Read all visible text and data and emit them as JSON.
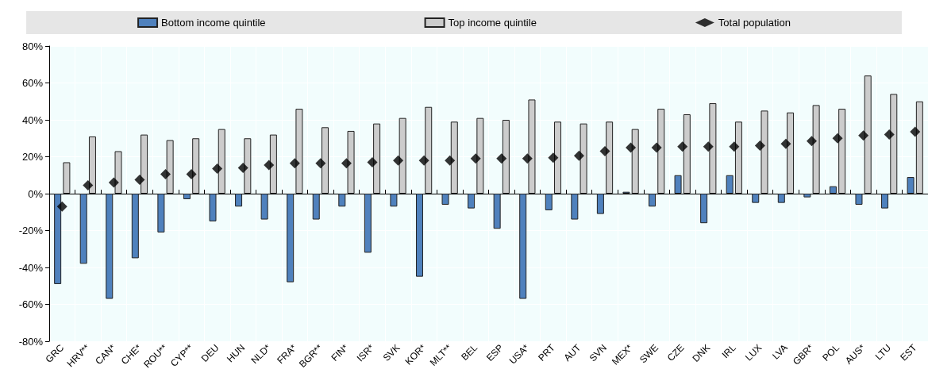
{
  "chart_data": {
    "type": "bar",
    "categories": [
      "GRC",
      "HRV**",
      "CAN*",
      "CHE*",
      "ROU**",
      "CYP**",
      "DEU",
      "HUN",
      "NLD*",
      "FRA*",
      "BGR**",
      "FIN*",
      "ISR*",
      "SVK",
      "KOR*",
      "MLT**",
      "BEL",
      "ESP",
      "USA*",
      "PRT",
      "AUT",
      "SVN",
      "MEX*",
      "SWE",
      "CZE",
      "DNK",
      "IRL",
      "LUX",
      "LVA",
      "GBR*",
      "POL",
      "AUS*",
      "LTU",
      "EST"
    ],
    "series": [
      {
        "name": "Bottom income quintile",
        "color": "#4f81bd",
        "values": [
          -49,
          -38,
          -57,
          -35,
          -21,
          -3,
          -15,
          -7,
          -14,
          -48,
          -14,
          -7,
          -32,
          -7,
          -45,
          -6,
          -8,
          -19,
          -57,
          -9,
          -14,
          -11,
          1,
          -7,
          10,
          -16,
          10,
          -5,
          -5,
          -2,
          4,
          -6,
          -8,
          9
        ]
      },
      {
        "name": "Top income quintile",
        "color": "#cccccc",
        "values": [
          17,
          31,
          23,
          32,
          29,
          30,
          35,
          30,
          32,
          46,
          36,
          34,
          38,
          41,
          47,
          39,
          41,
          40,
          51,
          39,
          38,
          39,
          35,
          46,
          43,
          49,
          39,
          45,
          44,
          48,
          46,
          64,
          54,
          50
        ]
      },
      {
        "name": "Total population",
        "type": "scatter",
        "marker": "diamond",
        "color": "#000000",
        "values": [
          -7,
          4.5,
          6,
          7.5,
          10.5,
          10.5,
          13.5,
          14,
          15.5,
          16.5,
          16.5,
          16.5,
          17,
          18,
          18,
          18,
          19,
          19,
          19,
          19.5,
          20.5,
          23,
          25,
          25,
          25.5,
          25.5,
          25.5,
          26,
          27,
          28.5,
          30,
          31.5,
          32,
          33.5
        ]
      }
    ],
    "ylim": [
      -80,
      80
    ],
    "yticks": [
      {
        "value": -80,
        "label": "-80%"
      },
      {
        "value": -60,
        "label": "-60%"
      },
      {
        "value": -40,
        "label": "-40%"
      },
      {
        "value": -20,
        "label": "-20%"
      },
      {
        "value": 0,
        "label": "0%"
      },
      {
        "value": 20,
        "label": "20%"
      },
      {
        "value": 40,
        "label": "40%"
      },
      {
        "value": 60,
        "label": "60%"
      },
      {
        "value": 80,
        "label": "80%"
      }
    ],
    "grid": true,
    "legend": "top"
  }
}
